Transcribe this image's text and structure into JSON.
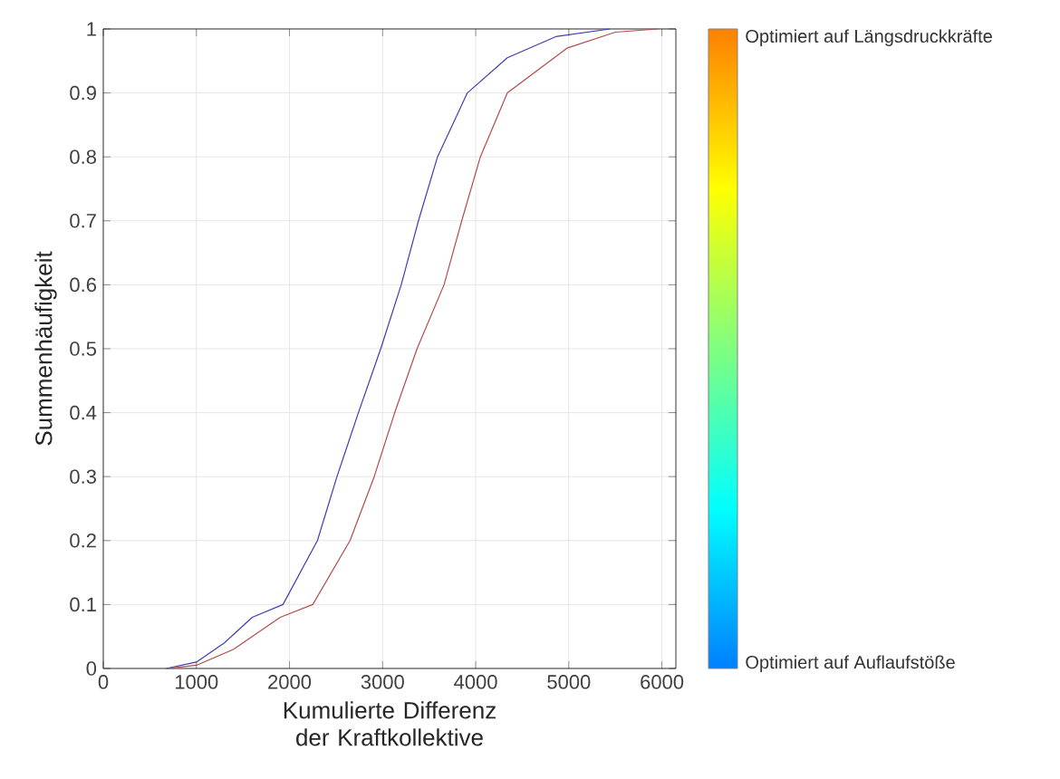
{
  "chart_data": {
    "type": "line",
    "xlabel": "Kumulierte Differenz der Kraftkollektive",
    "ylabel": "Summenhäufigkeit",
    "xlim": [
      0,
      6150
    ],
    "ylim": [
      0,
      1
    ],
    "xticks": [
      0,
      1000,
      2000,
      3000,
      4000,
      5000,
      6000
    ],
    "yticks": [
      0,
      0.1,
      0.2,
      0.3,
      0.4,
      0.5,
      0.6,
      0.7,
      0.8,
      0.9,
      1
    ],
    "grid": true,
    "annotations": [
      "Optimiert auf Längsdruckkräfte",
      "Optimiert auf Auflaufstöße"
    ],
    "series": [
      {
        "color": "#3c3cb4",
        "x": [
          675,
          1000,
          1300,
          1600,
          1930,
          2300,
          2510,
          2740,
          2980,
          3200,
          3385,
          3590,
          3910,
          4340,
          4860,
          5440
        ],
        "values": [
          0,
          0.01,
          0.04,
          0.08,
          0.1,
          0.2,
          0.3,
          0.4,
          0.5,
          0.6,
          0.7,
          0.8,
          0.9,
          0.955,
          0.988,
          1
        ]
      },
      {
        "color": "#b44b4b",
        "x": [
          700,
          1000,
          1400,
          1900,
          2250,
          2650,
          2910,
          3130,
          3370,
          3660,
          3850,
          4050,
          4340,
          4980,
          5500,
          5950
        ],
        "values": [
          0,
          0.005,
          0.03,
          0.08,
          0.1,
          0.2,
          0.3,
          0.4,
          0.5,
          0.6,
          0.7,
          0.8,
          0.9,
          0.97,
          0.995,
          1
        ]
      }
    ]
  }
}
